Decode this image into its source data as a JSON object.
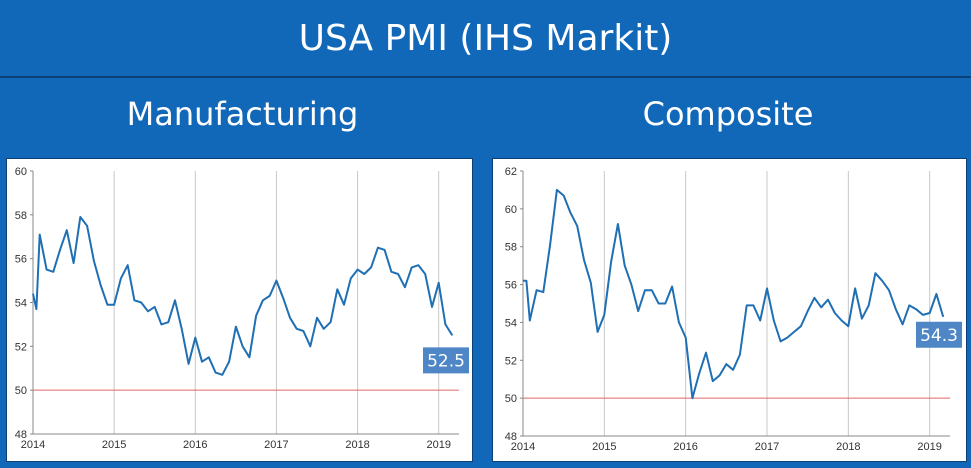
{
  "header": {
    "title": "USA PMI (IHS Markit)"
  },
  "colors": {
    "background": "#1167b8",
    "line": "#1f6fb4",
    "reference": "#e06666",
    "badge": "#4f86c6",
    "grid": "#c8c8c8"
  },
  "chart_data": [
    {
      "type": "line",
      "title": "Manufacturing",
      "x_tick_labels": [
        "2014",
        "2015",
        "2016",
        "2017",
        "2018",
        "2019"
      ],
      "y_tick_labels": [
        "48",
        "50",
        "52",
        "54",
        "56",
        "58",
        "60"
      ],
      "ylim": [
        48,
        60
      ],
      "xlim": [
        2014.0,
        2019.25
      ],
      "grid": "vertical",
      "reference_line": 50,
      "last_value_label": "52.5",
      "x": [
        2014.0,
        2014.042,
        2014.083,
        2014.167,
        2014.25,
        2014.333,
        2014.417,
        2014.5,
        2014.583,
        2014.667,
        2014.75,
        2014.833,
        2014.917,
        2015.0,
        2015.083,
        2015.167,
        2015.25,
        2015.333,
        2015.417,
        2015.5,
        2015.583,
        2015.667,
        2015.75,
        2015.833,
        2015.917,
        2016.0,
        2016.083,
        2016.167,
        2016.25,
        2016.333,
        2016.417,
        2016.5,
        2016.583,
        2016.667,
        2016.75,
        2016.833,
        2016.917,
        2017.0,
        2017.083,
        2017.167,
        2017.25,
        2017.333,
        2017.417,
        2017.5,
        2017.583,
        2017.667,
        2017.75,
        2017.833,
        2017.917,
        2018.0,
        2018.083,
        2018.167,
        2018.25,
        2018.333,
        2018.417,
        2018.5,
        2018.583,
        2018.667,
        2018.75,
        2018.833,
        2018.917,
        2019.0,
        2019.083,
        2019.167
      ],
      "y": [
        54.4,
        53.7,
        57.1,
        55.5,
        55.4,
        56.4,
        57.3,
        55.8,
        57.9,
        57.5,
        55.9,
        54.8,
        53.9,
        53.9,
        55.1,
        55.7,
        54.1,
        54.0,
        53.6,
        53.8,
        53.0,
        53.1,
        54.1,
        52.8,
        51.2,
        52.4,
        51.3,
        51.5,
        50.8,
        50.7,
        51.3,
        52.9,
        52.0,
        51.5,
        53.4,
        54.1,
        54.3,
        55.0,
        54.2,
        53.3,
        52.8,
        52.7,
        52.0,
        53.3,
        52.8,
        53.1,
        54.6,
        53.9,
        55.1,
        55.5,
        55.3,
        55.6,
        56.5,
        56.4,
        55.4,
        55.3,
        54.7,
        55.6,
        55.7,
        55.3,
        53.8,
        54.9,
        53.0,
        52.5
      ]
    },
    {
      "type": "line",
      "title": "Composite",
      "x_tick_labels": [
        "2014",
        "2015",
        "2016",
        "2017",
        "2018",
        "2019"
      ],
      "y_tick_labels": [
        "48",
        "50",
        "52",
        "54",
        "56",
        "58",
        "60",
        "62"
      ],
      "ylim": [
        48,
        62
      ],
      "xlim": [
        2014.0,
        2019.25
      ],
      "grid": "vertical",
      "reference_line": 50,
      "last_value_label": "54.3",
      "x": [
        2014.0,
        2014.042,
        2014.083,
        2014.167,
        2014.25,
        2014.333,
        2014.417,
        2014.5,
        2014.583,
        2014.667,
        2014.75,
        2014.833,
        2014.917,
        2015.0,
        2015.083,
        2015.167,
        2015.25,
        2015.333,
        2015.417,
        2015.5,
        2015.583,
        2015.667,
        2015.75,
        2015.833,
        2015.917,
        2016.0,
        2016.083,
        2016.167,
        2016.25,
        2016.333,
        2016.417,
        2016.5,
        2016.583,
        2016.667,
        2016.75,
        2016.833,
        2016.917,
        2017.0,
        2017.083,
        2017.167,
        2017.25,
        2017.333,
        2017.417,
        2017.5,
        2017.583,
        2017.667,
        2017.75,
        2017.833,
        2017.917,
        2018.0,
        2018.083,
        2018.167,
        2018.25,
        2018.333,
        2018.417,
        2018.5,
        2018.583,
        2018.667,
        2018.75,
        2018.833,
        2018.917,
        2019.0,
        2019.083,
        2019.167
      ],
      "y": [
        56.2,
        56.2,
        54.1,
        55.7,
        55.6,
        58.1,
        61.0,
        60.7,
        59.8,
        59.1,
        57.3,
        56.1,
        53.5,
        54.4,
        57.2,
        59.2,
        57.0,
        56.0,
        54.6,
        55.7,
        55.7,
        55.0,
        55.0,
        55.9,
        54.0,
        53.2,
        50.0,
        51.3,
        52.4,
        50.9,
        51.2,
        51.8,
        51.5,
        52.3,
        54.9,
        54.9,
        54.1,
        55.8,
        54.1,
        53.0,
        53.2,
        53.5,
        53.8,
        54.6,
        55.3,
        54.8,
        55.2,
        54.5,
        54.1,
        53.8,
        55.8,
        54.2,
        54.9,
        56.6,
        56.2,
        55.7,
        54.7,
        53.9,
        54.9,
        54.7,
        54.4,
        54.5,
        55.5,
        54.3
      ]
    }
  ]
}
